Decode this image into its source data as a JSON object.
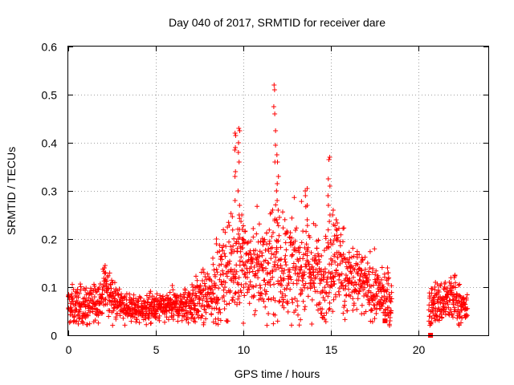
{
  "chart_data": {
    "type": "scatter",
    "title": "Day 040 of 2017, SRMTID for receiver dare",
    "xlabel": "GPS time / hours",
    "ylabel": "SRMTID / TECUs",
    "xlim": [
      0,
      24
    ],
    "ylim": [
      0,
      0.6
    ],
    "xticks": [
      0,
      5,
      10,
      15,
      20
    ],
    "yticks": [
      0,
      0.1,
      0.2,
      0.3,
      0.4,
      0.5,
      0.6
    ],
    "xtick_labels": [
      "0",
      "5",
      "10",
      "15",
      "20"
    ],
    "ytick_labels": [
      "0",
      "0.1",
      "0.2",
      "0.3",
      "0.4",
      "0.5",
      "0.6"
    ],
    "grid": true,
    "marker": "plus",
    "color": "#ff0000",
    "sampling_interval_hours": 0.0333,
    "series": [
      {
        "name": "SRMTID",
        "segments": [
          {
            "x_start": 0.0,
            "x_end": 18.5,
            "envelope_x": [
              0.0,
              1.0,
              1.8,
              2.1,
              2.5,
              3.0,
              4.0,
              5.0,
              6.0,
              7.0,
              8.0,
              8.5,
              9.0,
              9.5,
              9.75,
              10.0,
              10.5,
              11.0,
              11.5,
              11.85,
              12.2,
              12.5,
              13.0,
              13.6,
              14.0,
              14.5,
              14.95,
              15.3,
              15.6,
              16.0,
              16.5,
              17.0,
              17.5,
              18.0,
              18.5
            ],
            "envelope_mean": [
              0.06,
              0.06,
              0.07,
              0.1,
              0.08,
              0.06,
              0.055,
              0.055,
              0.06,
              0.065,
              0.08,
              0.1,
              0.13,
              0.15,
              0.17,
              0.15,
              0.14,
              0.14,
              0.14,
              0.16,
              0.15,
              0.14,
              0.14,
              0.14,
              0.13,
              0.12,
              0.14,
              0.16,
              0.14,
              0.12,
              0.11,
              0.1,
              0.09,
              0.08,
              0.07
            ],
            "envelope_spread": [
              0.02,
              0.02,
              0.02,
              0.025,
              0.02,
              0.015,
              0.015,
              0.015,
              0.015,
              0.02,
              0.03,
              0.04,
              0.05,
              0.05,
              0.07,
              0.05,
              0.05,
              0.05,
              0.05,
              0.06,
              0.05,
              0.05,
              0.05,
              0.05,
              0.05,
              0.04,
              0.05,
              0.05,
              0.05,
              0.04,
              0.04,
              0.03,
              0.03,
              0.025,
              0.025
            ]
          },
          {
            "x_start": 20.6,
            "x_end": 22.8,
            "envelope_x": [
              20.6,
              21.0,
              21.5,
              22.0,
              22.5,
              22.8
            ],
            "envelope_mean": [
              0.06,
              0.065,
              0.07,
              0.075,
              0.06,
              0.05
            ],
            "envelope_spread": [
              0.02,
              0.02,
              0.025,
              0.025,
              0.02,
              0.015
            ]
          }
        ],
        "spikes": [
          {
            "x": 2.1,
            "values": [
              0.13,
              0.14,
              0.145
            ]
          },
          {
            "x": 7.1,
            "values": [
              0.1,
              0.105
            ]
          },
          {
            "x": 8.5,
            "values": [
              0.19,
              0.2
            ]
          },
          {
            "x": 9.55,
            "values": [
              0.28,
              0.33,
              0.34,
              0.385,
              0.39,
              0.415,
              0.42
            ]
          },
          {
            "x": 9.75,
            "values": [
              0.2,
              0.22,
              0.25,
              0.27,
              0.3,
              0.36,
              0.38,
              0.4,
              0.425,
              0.43
            ]
          },
          {
            "x": 9.9,
            "values": [
              0.2,
              0.22,
              0.25
            ]
          },
          {
            "x": 11.8,
            "values": [
              0.36,
              0.395,
              0.425,
              0.46,
              0.475,
              0.51,
              0.52
            ]
          },
          {
            "x": 11.95,
            "values": [
              0.24,
              0.26,
              0.28,
              0.3,
              0.315,
              0.33,
              0.36,
              0.375
            ]
          },
          {
            "x": 13.6,
            "values": [
              0.24,
              0.27,
              0.29,
              0.3,
              0.305
            ]
          },
          {
            "x": 14.9,
            "values": [
              0.25,
              0.27,
              0.29,
              0.31,
              0.325,
              0.365,
              0.37
            ]
          },
          {
            "x": 15.1,
            "values": [
              0.23,
              0.25,
              0.26
            ]
          },
          {
            "x": 15.3,
            "values": [
              0.2,
              0.22,
              0.24
            ]
          },
          {
            "x": 18.3,
            "values": [
              0.13,
              0.14
            ]
          },
          {
            "x": 18.4,
            "values": [
              0.03,
              0.02
            ]
          },
          {
            "x": 21.0,
            "values": [
              0.1,
              0.11
            ]
          },
          {
            "x": 21.5,
            "values": [
              0.1,
              0.11
            ]
          },
          {
            "x": 22.1,
            "values": [
              0.12,
              0.125
            ]
          }
        ],
        "square_markers": [
          {
            "x": 18.1,
            "y": 0.03
          },
          {
            "x": 20.7,
            "y": 0.0
          }
        ]
      }
    ]
  }
}
